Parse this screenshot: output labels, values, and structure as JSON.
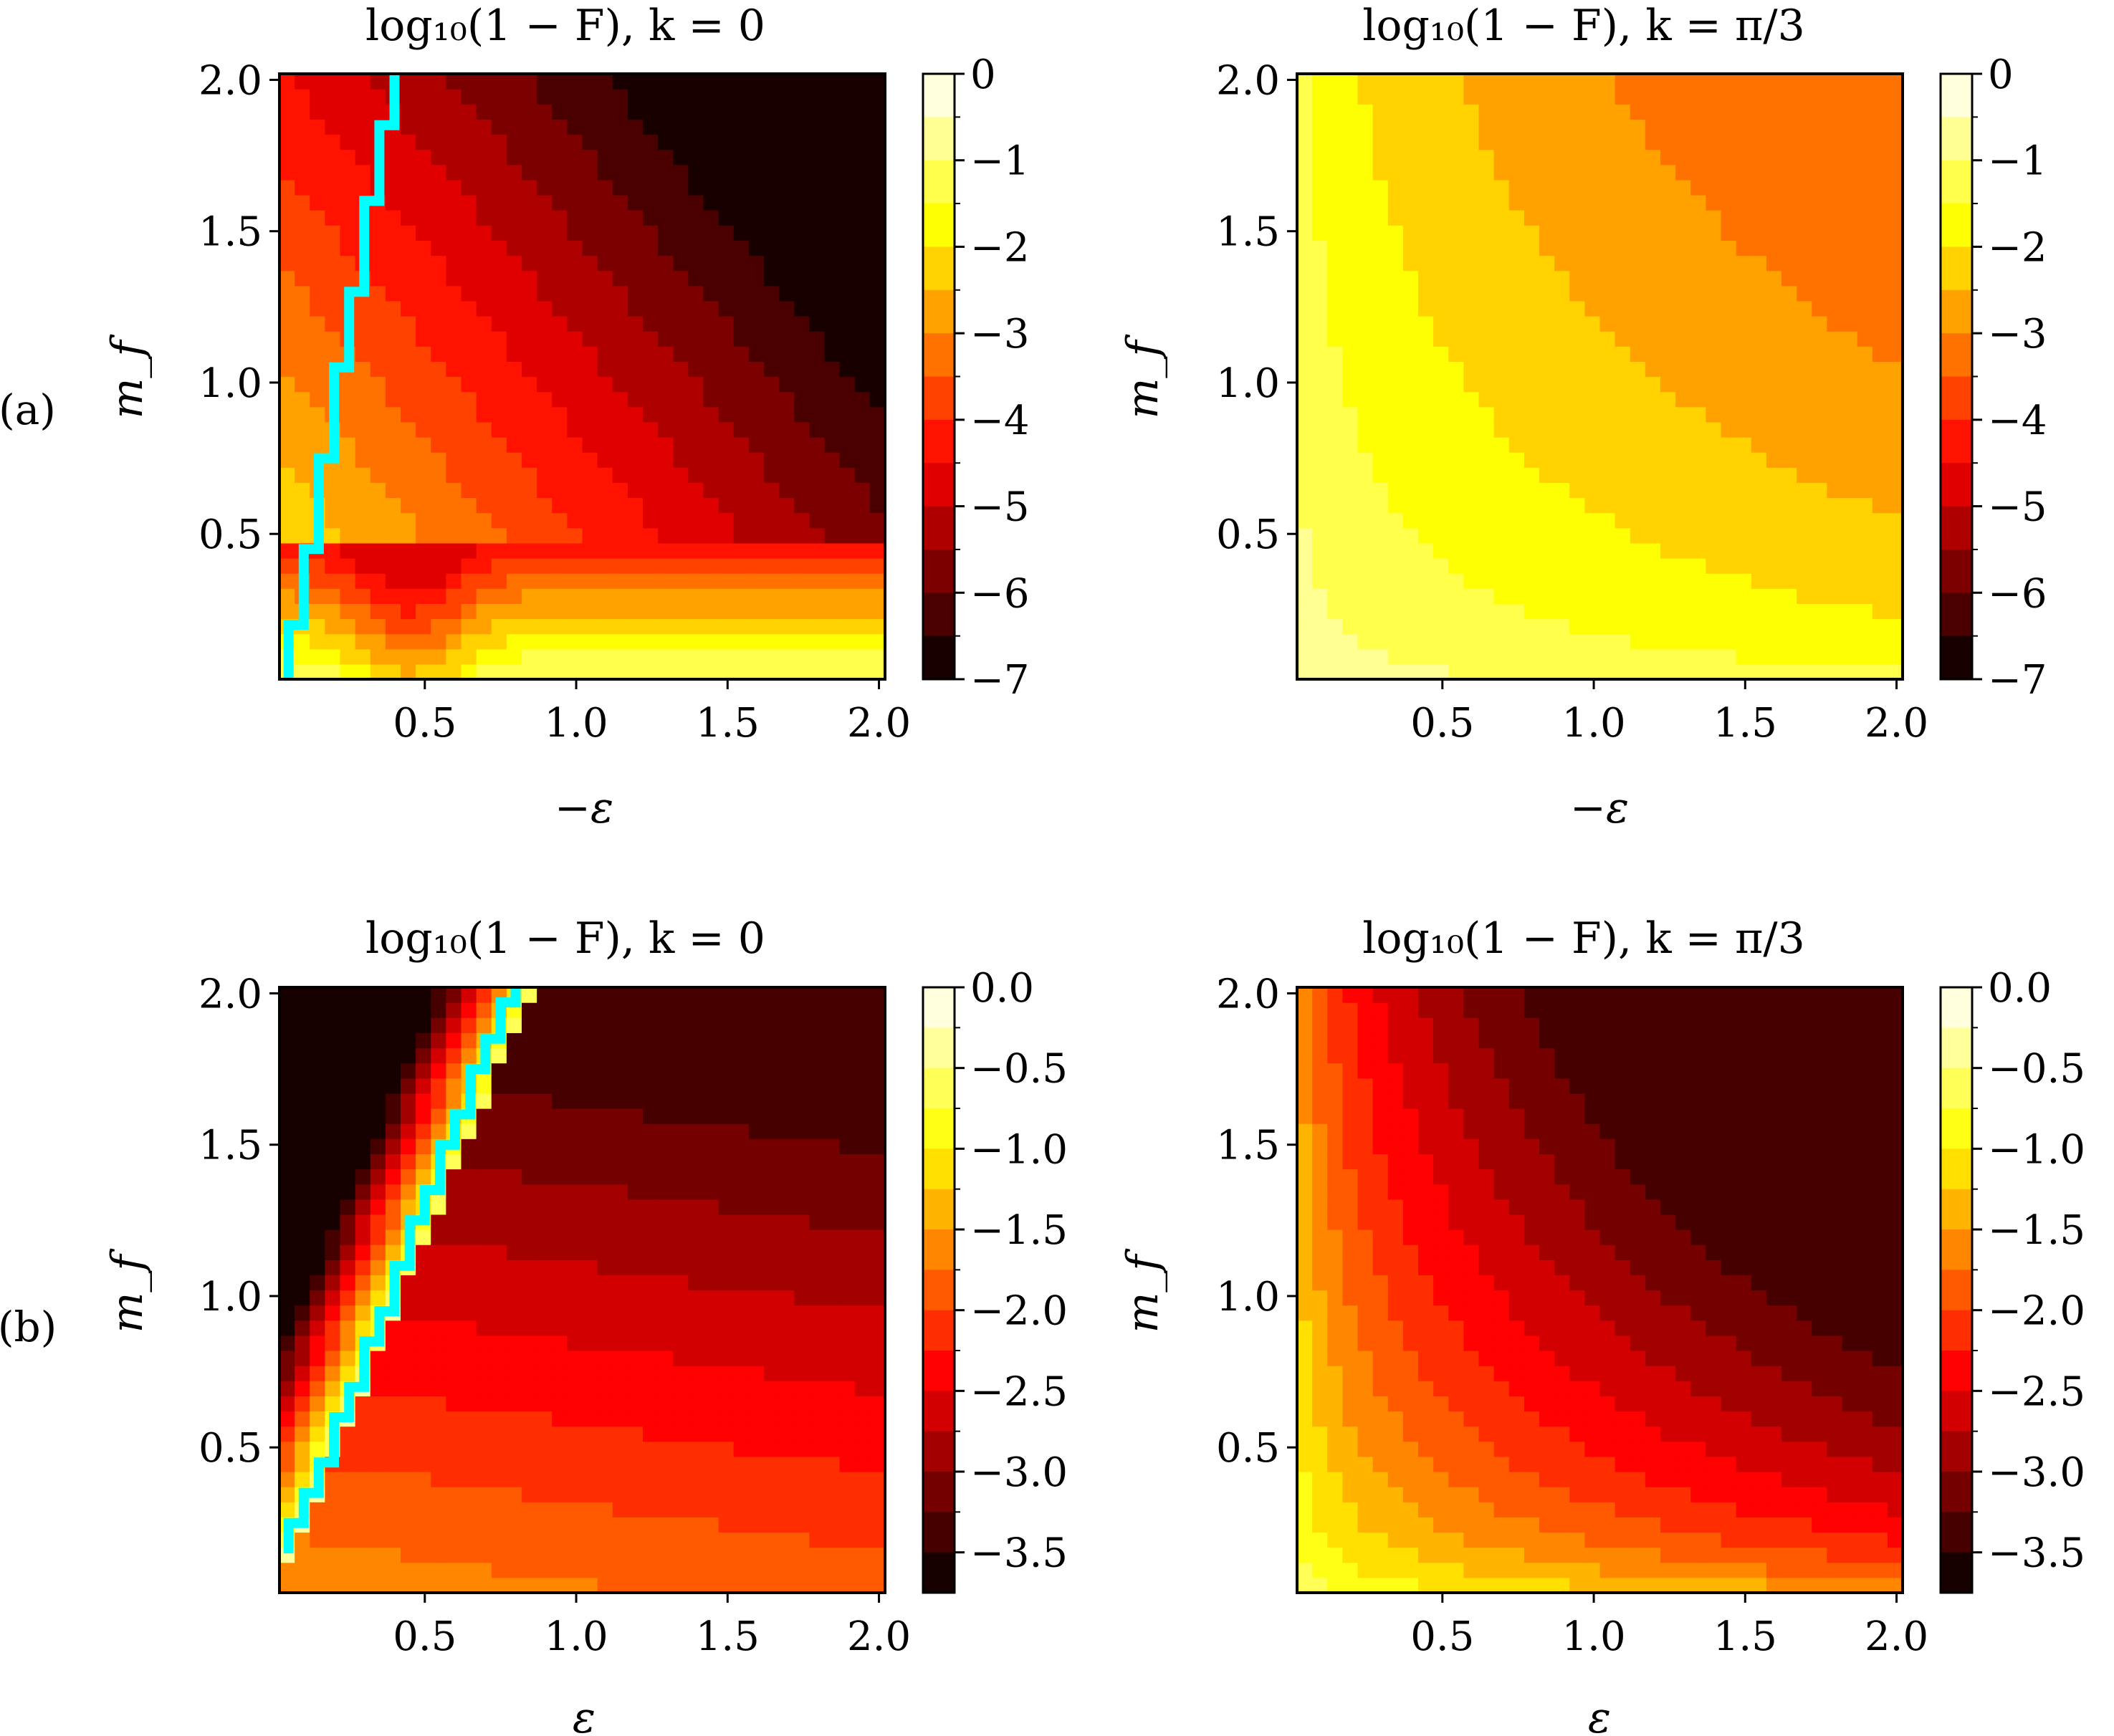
{
  "colormap": {
    "name": "hot",
    "stops": [
      "#000000",
      "#ff0000",
      "#ffff00",
      "#ffffff"
    ]
  },
  "chart_data": [
    {
      "type": "heatmap",
      "row_label": "(a)",
      "title": "log₁₀(1 − F), k = 0",
      "xlabel": "−ε",
      "ylabel": "m_f",
      "xlim": [
        0.02,
        2.02
      ],
      "ylim": [
        0.02,
        2.02
      ],
      "xticks": [
        "0.5",
        "1.0",
        "1.5",
        "2.0"
      ],
      "yticks": [
        "0.5",
        "1.0",
        "1.5",
        "2.0"
      ],
      "colorbar": {
        "range": [
          -7,
          0
        ],
        "levels": 14,
        "ticks": [
          "0",
          "−1",
          "−2",
          "−3",
          "−4",
          "−5",
          "−6",
          "−7"
        ]
      },
      "model": "ka",
      "boundary": {
        "color": "#00ffff",
        "points": [
          [
            0.05,
            0.02
          ],
          [
            0.05,
            0.2
          ],
          [
            0.1,
            0.2
          ],
          [
            0.1,
            0.45
          ],
          [
            0.15,
            0.45
          ],
          [
            0.15,
            0.75
          ],
          [
            0.2,
            0.75
          ],
          [
            0.2,
            1.05
          ],
          [
            0.25,
            1.05
          ],
          [
            0.25,
            1.3
          ],
          [
            0.3,
            1.3
          ],
          [
            0.3,
            1.6
          ],
          [
            0.35,
            1.6
          ],
          [
            0.35,
            1.85
          ],
          [
            0.4,
            1.85
          ],
          [
            0.4,
            2.02
          ]
        ]
      }
    },
    {
      "type": "heatmap",
      "title": "log₁₀(1 − F), k = π/3",
      "xlabel": "−ε",
      "ylabel": "m_f",
      "xlim": [
        0.02,
        2.02
      ],
      "ylim": [
        0.02,
        2.02
      ],
      "xticks": [
        "0.5",
        "1.0",
        "1.5",
        "2.0"
      ],
      "yticks": [
        "0.5",
        "1.0",
        "1.5",
        "2.0"
      ],
      "colorbar": {
        "range": [
          -7,
          0
        ],
        "levels": 14,
        "ticks": [
          "0",
          "−1",
          "−2",
          "−3",
          "−4",
          "−5",
          "−6",
          "−7"
        ]
      },
      "model": "kb"
    },
    {
      "type": "heatmap",
      "row_label": "(b)",
      "title": "log₁₀(1 − F), k = 0",
      "xlabel": "ε",
      "ylabel": "m_f",
      "xlim": [
        0.02,
        2.02
      ],
      "ylim": [
        0.02,
        2.02
      ],
      "xticks": [
        "0.5",
        "1.0",
        "1.5",
        "2.0"
      ],
      "yticks": [
        "0.5",
        "1.0",
        "1.5",
        "2.0"
      ],
      "colorbar": {
        "range": [
          -3.75,
          0
        ],
        "levels": 15,
        "ticks": [
          "0.0",
          "−0.5",
          "−1.0",
          "−1.5",
          "−2.0",
          "−2.5",
          "−3.0",
          "−3.5"
        ]
      },
      "model": "kc",
      "boundary": {
        "color": "#00ffff",
        "points": [
          [
            0.05,
            0.15
          ],
          [
            0.05,
            0.25
          ],
          [
            0.1,
            0.25
          ],
          [
            0.1,
            0.35
          ],
          [
            0.15,
            0.35
          ],
          [
            0.15,
            0.45
          ],
          [
            0.2,
            0.45
          ],
          [
            0.2,
            0.6
          ],
          [
            0.25,
            0.6
          ],
          [
            0.25,
            0.7
          ],
          [
            0.3,
            0.7
          ],
          [
            0.3,
            0.85
          ],
          [
            0.35,
            0.85
          ],
          [
            0.35,
            0.95
          ],
          [
            0.4,
            0.95
          ],
          [
            0.4,
            1.1
          ],
          [
            0.45,
            1.1
          ],
          [
            0.45,
            1.25
          ],
          [
            0.5,
            1.25
          ],
          [
            0.5,
            1.35
          ],
          [
            0.55,
            1.35
          ],
          [
            0.55,
            1.5
          ],
          [
            0.6,
            1.5
          ],
          [
            0.6,
            1.6
          ],
          [
            0.65,
            1.6
          ],
          [
            0.65,
            1.75
          ],
          [
            0.7,
            1.75
          ],
          [
            0.7,
            1.85
          ],
          [
            0.75,
            1.85
          ],
          [
            0.75,
            1.97
          ],
          [
            0.8,
            1.97
          ],
          [
            0.8,
            2.02
          ]
        ]
      }
    },
    {
      "type": "heatmap",
      "title": "log₁₀(1 − F), k = π/3",
      "xlabel": "ε",
      "ylabel": "m_f",
      "xlim": [
        0.02,
        2.02
      ],
      "ylim": [
        0.02,
        2.02
      ],
      "xticks": [
        "0.5",
        "1.0",
        "1.5",
        "2.0"
      ],
      "yticks": [
        "0.5",
        "1.0",
        "1.5",
        "2.0"
      ],
      "colorbar": {
        "range": [
          -3.75,
          0
        ],
        "levels": 15,
        "ticks": [
          "0.0",
          "−0.5",
          "−1.0",
          "−1.5",
          "−2.0",
          "−2.5",
          "−3.0",
          "−3.5"
        ]
      },
      "model": "kd"
    }
  ]
}
